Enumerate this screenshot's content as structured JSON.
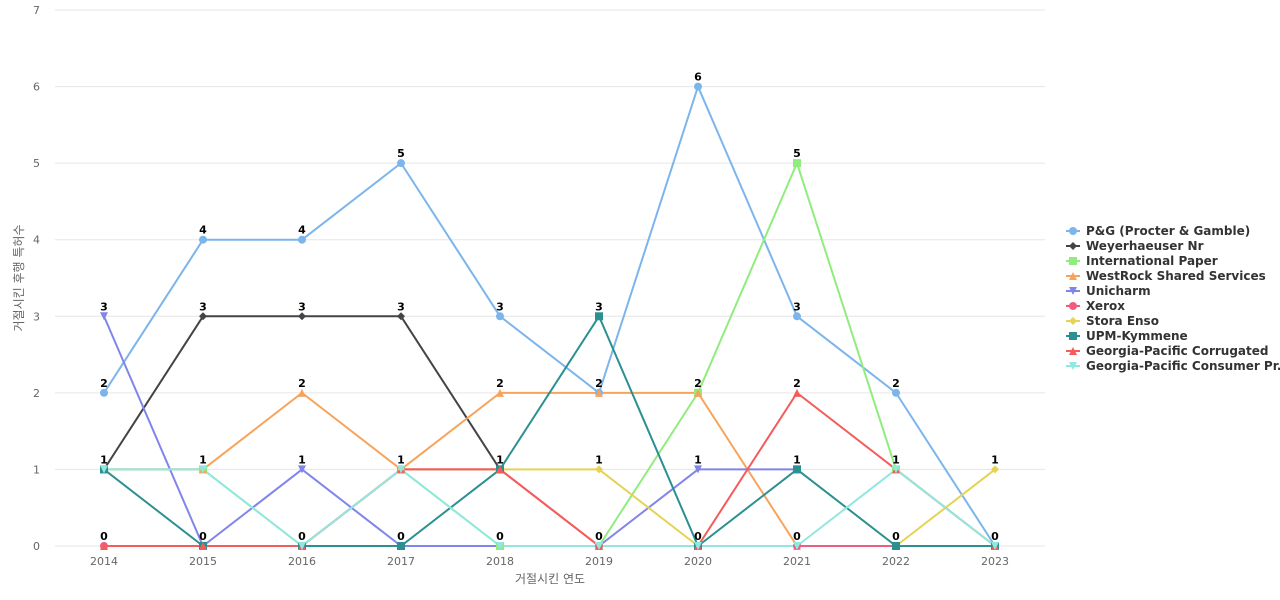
{
  "chart_data": {
    "type": "line",
    "xlabel": "거절시킨 연도",
    "ylabel": "거절시킨 후행 특허수",
    "ylim": [
      0,
      7
    ],
    "y_ticks": [
      0,
      1,
      2,
      3,
      4,
      5,
      6,
      7
    ],
    "x": [
      "2014",
      "2015",
      "2016",
      "2017",
      "2018",
      "2019",
      "2020",
      "2021",
      "2022",
      "2023"
    ],
    "grid": true,
    "legend_position": "right",
    "series": [
      {
        "name": "P&G (Procter & Gamble)",
        "color": "#7cb5ec",
        "marker": "circle",
        "values": [
          2,
          4,
          4,
          5,
          3,
          2,
          6,
          3,
          2,
          0
        ]
      },
      {
        "name": "Weyerhaeuser Nr",
        "color": "#434348",
        "marker": "diamond",
        "values": [
          1,
          3,
          3,
          3,
          1,
          null,
          null,
          null,
          null,
          null
        ]
      },
      {
        "name": "International Paper",
        "color": "#90ed7d",
        "marker": "square",
        "values": [
          1,
          1,
          0,
          1,
          0,
          0,
          2,
          5,
          1,
          0
        ]
      },
      {
        "name": "WestRock Shared Services",
        "color": "#f7a35c",
        "marker": "triangle",
        "values": [
          1,
          1,
          2,
          1,
          2,
          2,
          2,
          0,
          null,
          null
        ]
      },
      {
        "name": "Unicharm",
        "color": "#8085e9",
        "marker": "triangle-down",
        "values": [
          3,
          0,
          1,
          0,
          0,
          0,
          1,
          1,
          null,
          null
        ]
      },
      {
        "name": "Xerox",
        "color": "#f15c80",
        "marker": "circle",
        "values": [
          0,
          0,
          0,
          1,
          1,
          0,
          0,
          0,
          0,
          0
        ]
      },
      {
        "name": "Stora Enso",
        "color": "#e4d354",
        "marker": "diamond",
        "values": [
          null,
          null,
          null,
          1,
          1,
          1,
          0,
          null,
          0,
          1
        ]
      },
      {
        "name": "UPM-Kymmene",
        "color": "#2b908f",
        "marker": "square",
        "values": [
          1,
          0,
          0,
          0,
          1,
          3,
          0,
          1,
          0,
          0
        ]
      },
      {
        "name": "Georgia-Pacific Corrugated",
        "color": "#f45b5b",
        "marker": "triangle",
        "values": [
          0,
          0,
          0,
          1,
          1,
          0,
          0,
          2,
          1,
          0
        ]
      },
      {
        "name": "Georgia-Pacific Consumer Pr...",
        "color": "#91e8e1",
        "marker": "triangle-down",
        "values": [
          1,
          1,
          0,
          1,
          0,
          0,
          0,
          0,
          1,
          0
        ]
      }
    ],
    "data_labels": [
      {
        "x": "2014",
        "y": 3,
        "text": "3"
      },
      {
        "x": "2014",
        "y": 2,
        "text": "2"
      },
      {
        "x": "2014",
        "y": 1,
        "text": "1"
      },
      {
        "x": "2014",
        "y": 0,
        "text": "0"
      },
      {
        "x": "2015",
        "y": 4,
        "text": "4"
      },
      {
        "x": "2015",
        "y": 3,
        "text": "3"
      },
      {
        "x": "2015",
        "y": 1,
        "text": "1"
      },
      {
        "x": "2015",
        "y": 0,
        "text": "0"
      },
      {
        "x": "2016",
        "y": 4,
        "text": "4"
      },
      {
        "x": "2016",
        "y": 3,
        "text": "3"
      },
      {
        "x": "2016",
        "y": 2,
        "text": "2"
      },
      {
        "x": "2016",
        "y": 1,
        "text": "1"
      },
      {
        "x": "2016",
        "y": 0,
        "text": "0"
      },
      {
        "x": "2017",
        "y": 5,
        "text": "5"
      },
      {
        "x": "2017",
        "y": 3,
        "text": "3"
      },
      {
        "x": "2017",
        "y": 1,
        "text": "1"
      },
      {
        "x": "2017",
        "y": 0,
        "text": "0"
      },
      {
        "x": "2018",
        "y": 3,
        "text": "3"
      },
      {
        "x": "2018",
        "y": 2,
        "text": "2"
      },
      {
        "x": "2018",
        "y": 1,
        "text": "1"
      },
      {
        "x": "2018",
        "y": 0,
        "text": "0"
      },
      {
        "x": "2019",
        "y": 3,
        "text": "3"
      },
      {
        "x": "2019",
        "y": 2,
        "text": "2"
      },
      {
        "x": "2019",
        "y": 1,
        "text": "1"
      },
      {
        "x": "2019",
        "y": 0,
        "text": "0"
      },
      {
        "x": "2020",
        "y": 6,
        "text": "6"
      },
      {
        "x": "2020",
        "y": 2,
        "text": "2"
      },
      {
        "x": "2020",
        "y": 1,
        "text": "1"
      },
      {
        "x": "2020",
        "y": 0,
        "text": "0"
      },
      {
        "x": "2021",
        "y": 5,
        "text": "5"
      },
      {
        "x": "2021",
        "y": 3,
        "text": "3"
      },
      {
        "x": "2021",
        "y": 2,
        "text": "2"
      },
      {
        "x": "2021",
        "y": 1,
        "text": "1"
      },
      {
        "x": "2021",
        "y": 0,
        "text": "0"
      },
      {
        "x": "2022",
        "y": 2,
        "text": "2"
      },
      {
        "x": "2022",
        "y": 1,
        "text": "1"
      },
      {
        "x": "2022",
        "y": 0,
        "text": "0"
      },
      {
        "x": "2023",
        "y": 1,
        "text": "1"
      },
      {
        "x": "2023",
        "y": 0,
        "text": "0"
      }
    ]
  }
}
